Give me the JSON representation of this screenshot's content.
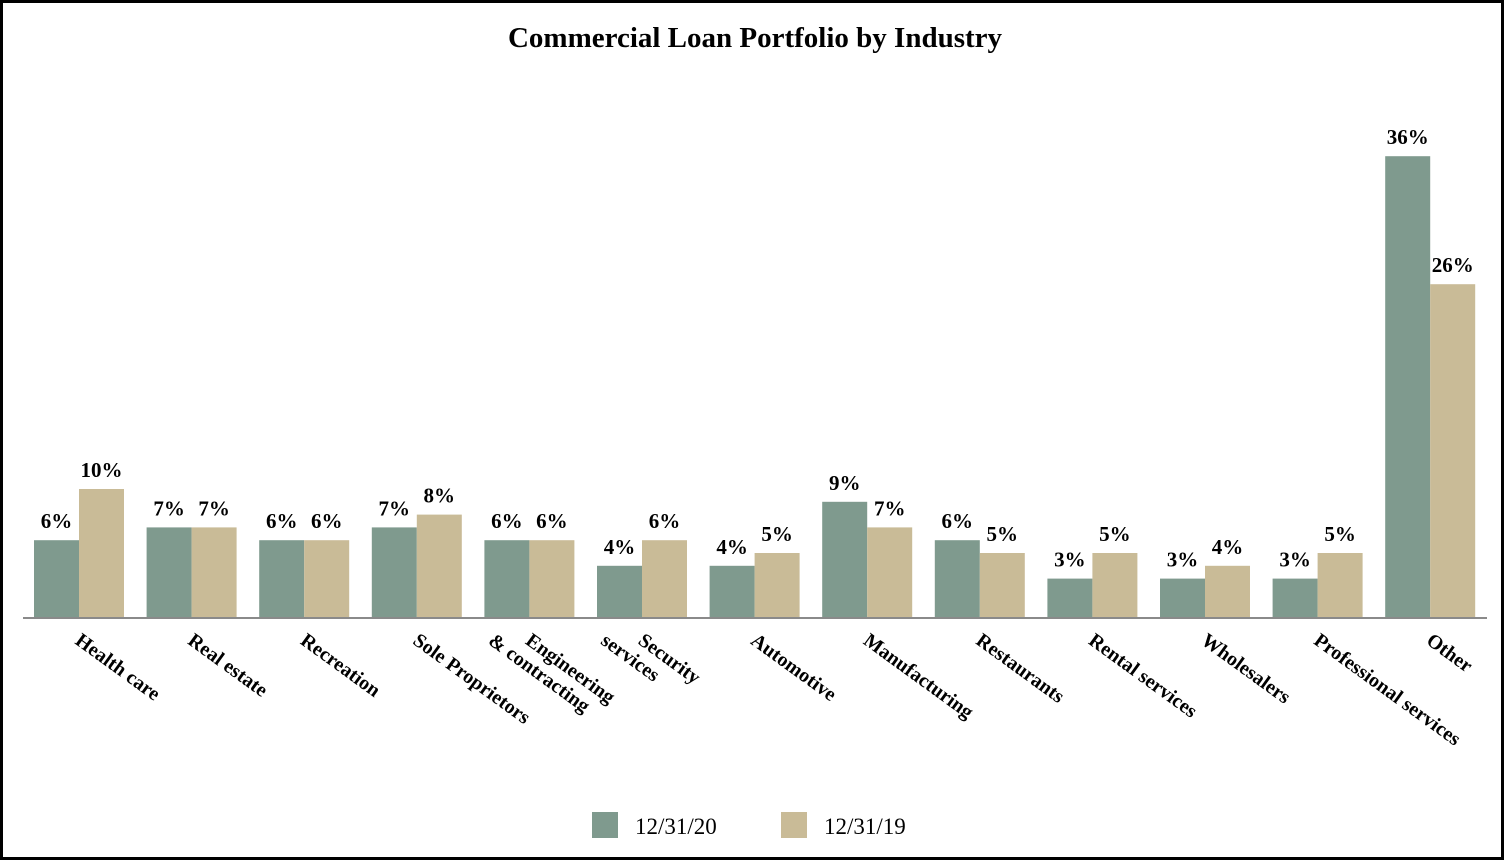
{
  "chart_data": {
    "type": "bar",
    "title": "Commercial Loan Portfolio by Industry",
    "xlabel": "",
    "ylabel": "",
    "ylim": [
      0,
      40
    ],
    "grid": false,
    "legend_position": "bottom-center",
    "categories": [
      [
        "Health care"
      ],
      [
        "Real estate"
      ],
      [
        "Recreation"
      ],
      [
        "Sole Proprietors"
      ],
      [
        "Engineering",
        "& contracting"
      ],
      [
        "Security",
        "services"
      ],
      [
        "Automotive"
      ],
      [
        "Manufacturing"
      ],
      [
        "Restaurants"
      ],
      [
        "Rental services"
      ],
      [
        "Wholesalers"
      ],
      [
        "Professional services"
      ],
      [
        "Other"
      ]
    ],
    "series": [
      {
        "name": "12/31/20",
        "color": "#7f9a8e",
        "values": [
          6,
          7,
          6,
          7,
          6,
          4,
          4,
          9,
          6,
          3,
          3,
          3,
          36
        ],
        "labels": [
          "6%",
          "7%",
          "6%",
          "7%",
          "6%",
          "4%",
          "4%",
          "9%",
          "6%",
          "3%",
          "3%",
          "3%",
          "36%"
        ]
      },
      {
        "name": "12/31/19",
        "color": "#c9bb97",
        "values": [
          10,
          7,
          6,
          8,
          6,
          6,
          5,
          7,
          5,
          5,
          4,
          5,
          26
        ],
        "labels": [
          "10%",
          "7%",
          "6%",
          "8%",
          "6%",
          "6%",
          "5%",
          "7%",
          "5%",
          "5%",
          "4%",
          "5%",
          "26%"
        ]
      }
    ]
  }
}
